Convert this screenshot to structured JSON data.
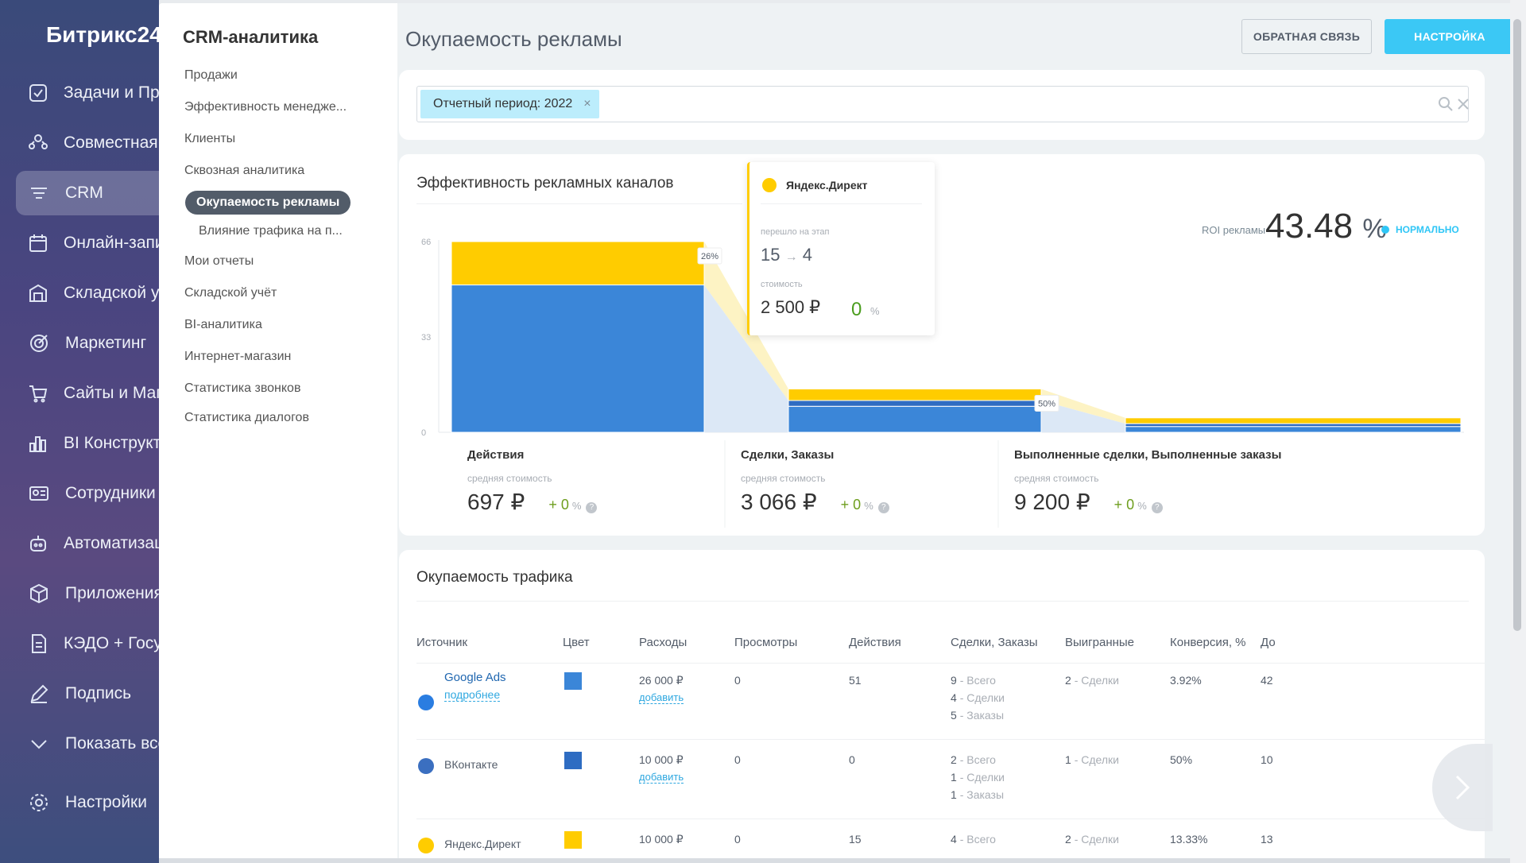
{
  "nav": {
    "brand": "Битрикс24",
    "items": [
      {
        "label": "Задачи и Проекты",
        "icon": "checkbox-icon"
      },
      {
        "label": "Совместная работа",
        "icon": "team-icon"
      },
      {
        "label": "CRM",
        "icon": "filter-icon"
      },
      {
        "label": "Онлайн-запись",
        "icon": "calendar-icon"
      },
      {
        "label": "Складской учёт",
        "icon": "warehouse-icon"
      },
      {
        "label": "Маркетинг",
        "icon": "target-icon"
      },
      {
        "label": "Сайты и Магазины",
        "icon": "cart-icon"
      },
      {
        "label": "BI Конструктор",
        "icon": "bar-chart-icon"
      },
      {
        "label": "Сотрудники",
        "icon": "id-card-icon"
      },
      {
        "label": "Автоматизация",
        "icon": "robot-icon"
      },
      {
        "label": "Приложения",
        "icon": "cube-icon"
      },
      {
        "label": "КЭДО + Госуслуги",
        "icon": "document-icon"
      },
      {
        "label": "Подпись",
        "icon": "pen-icon"
      },
      {
        "label": "Показать всё",
        "icon": "chevron-down-icon"
      },
      {
        "label": "Настройки",
        "icon": "gear-icon"
      }
    ]
  },
  "submenu": {
    "title": "CRM-аналитика",
    "items": [
      "Продажи",
      "Эффективность менедже...",
      "Клиенты",
      "Сквозная аналитика",
      "Окупаемость рекламы",
      "Влияние трафика на п...",
      "Мои отчеты",
      "Складской учёт",
      "BI-аналитика",
      "Интернет-магазин",
      "Статистика звонков",
      "Статистика диалогов"
    ]
  },
  "header": {
    "title": "Окупаемость рекламы",
    "feedback_label": "Обратная связь",
    "settings_label": "Настройка"
  },
  "filter": {
    "tag": "Отчетный период: 2022",
    "tag_remove": "×"
  },
  "funnel": {
    "title": "Эффективность рекламных каналов",
    "roi_label": "ROI рекламы",
    "roi_value": "43.48",
    "roi_unit": "%",
    "roi_status": "нормально",
    "y_ticks": [
      "66",
      "33",
      "0"
    ],
    "conversion_labels": [
      "26%",
      "50%"
    ],
    "stages": [
      {
        "name": "Действия",
        "sub": "средняя стоимость",
        "cost": "697 ₽",
        "delta": "+ 0",
        "pct": "%"
      },
      {
        "name": "Сделки, Заказы",
        "sub": "средняя стоимость",
        "cost": "3 066 ₽",
        "delta": "+ 0",
        "pct": "%"
      },
      {
        "name": "Выполненные сделки, Выполненные заказы",
        "sub": "средняя стоимость",
        "cost": "9 200 ₽",
        "delta": "+ 0",
        "pct": "%"
      }
    ],
    "tooltip": {
      "source": "Яндекс.Директ",
      "stage_label": "перешло на этап",
      "stage_from": "15",
      "arrow": "→",
      "stage_to": "4",
      "cost_label": "стоимость",
      "cost": "2 500 ₽",
      "pct": "0",
      "pct_sign": "%"
    },
    "colors": {
      "blue": "#3b86d8",
      "blue_dark": "#2e6cc2",
      "yellow": "#ffcc00",
      "flow_blue": "#dce8f6",
      "flow_yellow": "#fdf3c4"
    }
  },
  "chart_data": {
    "type": "bar",
    "title": "Эффективность рекламных каналов",
    "categories": [
      "Действия",
      "Сделки, Заказы",
      "Выполненные сделки, Выполненные заказы"
    ],
    "series": [
      {
        "name": "Google Ads",
        "values": [
          51,
          9,
          2
        ]
      },
      {
        "name": "ВКонтакте",
        "values": [
          0,
          2,
          1
        ]
      },
      {
        "name": "Яндекс.Директ",
        "values": [
          15,
          4,
          2
        ]
      }
    ],
    "ylim": [
      0,
      66
    ],
    "y_ticks": [
      0,
      33,
      66
    ],
    "conversion": [
      "26%",
      "50%"
    ]
  },
  "table": {
    "title": "Окупаемость трафика",
    "columns": [
      "Источник",
      "Цвет",
      "Расходы",
      "Просмотры",
      "Действия",
      "Сделки, Заказы",
      "Выигранные",
      "Конверсия, %",
      "До"
    ],
    "rows": [
      {
        "source": "Google Ads",
        "more": "подробнее",
        "color": "#3b86d8",
        "icon_color": "#2a7de1",
        "expenses": "26 000 ₽",
        "add": "добавить",
        "views": "0",
        "actions": "51",
        "deals_total": "9",
        "deals_total_lbl": "- Всего",
        "deals_d": "4",
        "deals_d_lbl": "- Сделки",
        "deals_o": "5",
        "deals_o_lbl": "- Заказы",
        "won": "2",
        "won_lbl": "- Сделки",
        "conv": "3.92%",
        "extra": "42"
      },
      {
        "source": "ВКонтакте",
        "more": "",
        "color": "#2e6cc2",
        "icon_color": "#3b6fc0",
        "expenses": "10 000 ₽",
        "add": "добавить",
        "views": "0",
        "actions": "0",
        "deals_total": "2",
        "deals_total_lbl": "- Всего",
        "deals_d": "1",
        "deals_d_lbl": "- Сделки",
        "deals_o": "1",
        "deals_o_lbl": "- Заказы",
        "won": "1",
        "won_lbl": "- Сделки",
        "conv": "50%",
        "extra": "10"
      },
      {
        "source": "Яндекс.Директ",
        "more": "",
        "color": "#ffcc00",
        "icon_color": "#ffcc00",
        "expenses": "10 000 ₽",
        "add": "",
        "views": "0",
        "actions": "15",
        "deals_total": "4",
        "deals_total_lbl": "- Всего",
        "deals_d": "",
        "deals_d_lbl": "",
        "deals_o": "",
        "deals_o_lbl": "",
        "won": "2",
        "won_lbl": "- Сделки",
        "conv": "13.33%",
        "extra": "13"
      }
    ]
  }
}
